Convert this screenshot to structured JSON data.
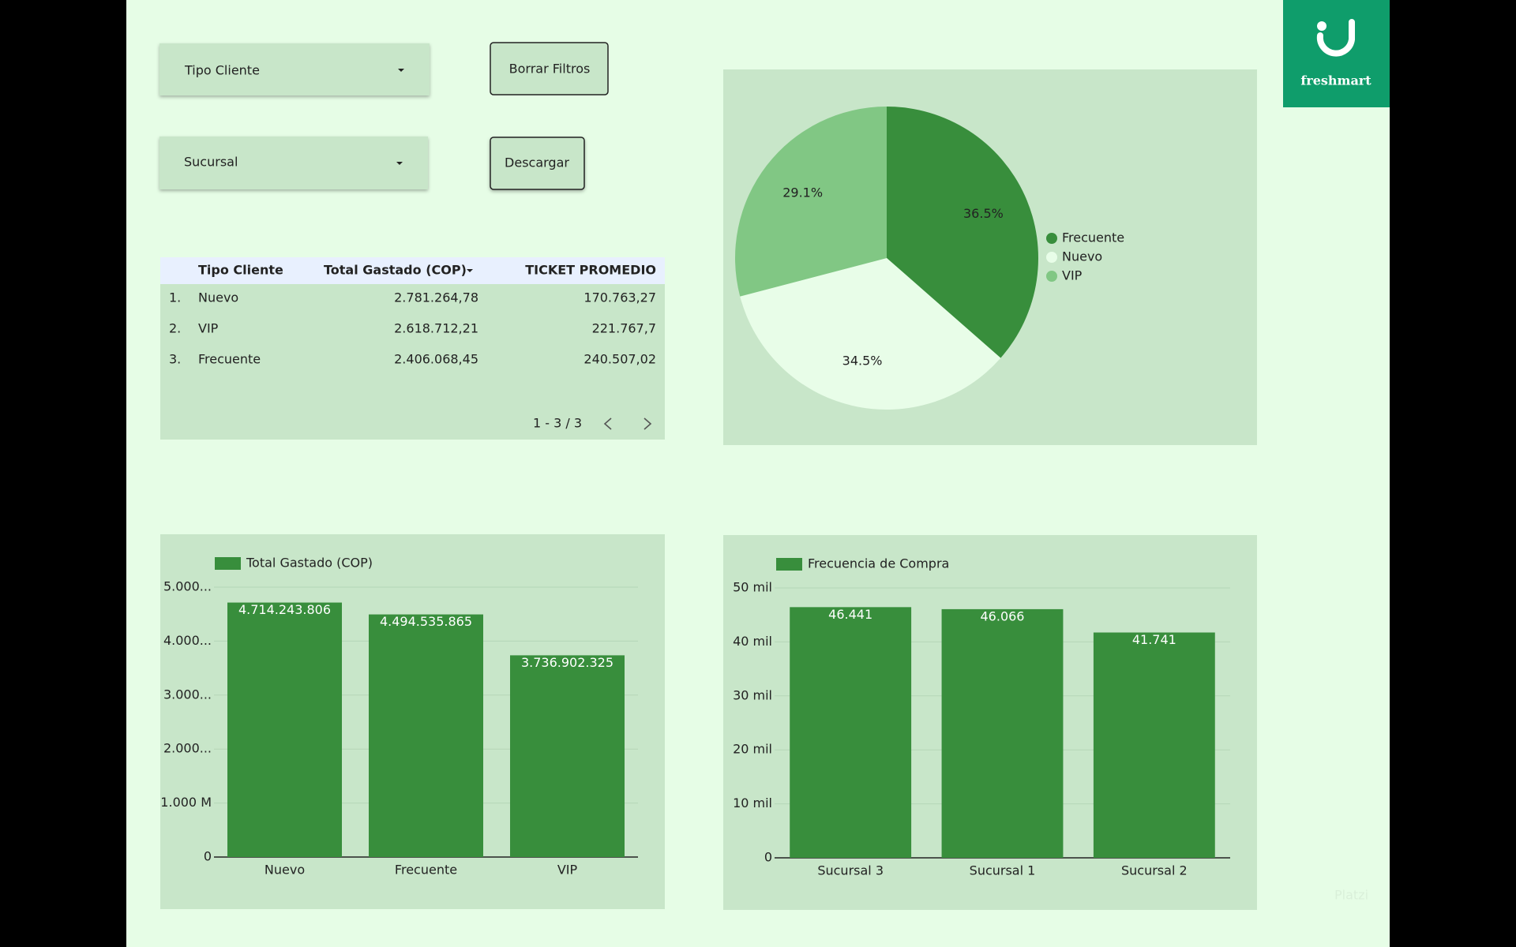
{
  "filters": [
    "Tipo Cliente",
    "Sucursal"
  ],
  "buttons": [
    "Borrar Filtros",
    "Descargar"
  ],
  "logo": "freshmart",
  "watermark": "Platzi",
  "table": {
    "headers": [
      "Tipo Cliente",
      "Total Gastado (COP)",
      "TICKET PROMEDIO"
    ],
    "rows": [
      [
        "1.",
        "Nuevo",
        "2.781.264,78",
        "170.763,27"
      ],
      [
        "2.",
        "VIP",
        "2.618.712,21",
        "221.767,7"
      ],
      [
        "3.",
        "Frecuente",
        "2.406.068,45",
        "240.507,02"
      ]
    ],
    "pagination": "1 - 3 / 3"
  },
  "chart_data": [
    {
      "type": "pie",
      "categories": [
        "Frecuente",
        "Nuevo",
        "VIP"
      ],
      "values": [
        36.5,
        34.5,
        29.1
      ],
      "value_labels": [
        "36.5%",
        "34.5%",
        "29.1%"
      ],
      "colors": [
        "#388e3c",
        "#e8fde8",
        "#81c784"
      ],
      "legend": "right"
    },
    {
      "type": "bar",
      "categories": [
        "Nuevo",
        "Frecuente",
        "VIP"
      ],
      "series": [
        {
          "name": "Total Gastado (COP)",
          "color": "#388e3c",
          "values": [
            4714243806,
            4494535865,
            3736902325
          ],
          "value_labels": [
            "4.714.243.806",
            "4.494.535.865",
            "3.736.902.325"
          ]
        }
      ],
      "ylim": [
        0,
        5000000000
      ],
      "yticks": [
        0,
        {
          "value": 1000000000,
          "label": "1.000 M"
        },
        {
          "value": 2000000000,
          "label": "2.000..."
        },
        {
          "value": 3000000000,
          "label": "3.000..."
        },
        {
          "value": 4000000000,
          "label": "4.000..."
        },
        {
          "value": 5000000000,
          "label": "5.000..."
        }
      ],
      "grid": true,
      "legend": "top-left"
    },
    {
      "type": "bar",
      "categories": [
        "Sucursal 3",
        "Sucursal 1",
        "Sucursal 2"
      ],
      "series": [
        {
          "name": "Frecuencia de Compra",
          "color": "#388e3c",
          "values": [
            46441,
            46066,
            41741
          ],
          "value_labels": [
            "46.441",
            "46.066",
            "41.741"
          ]
        }
      ],
      "ylim": [
        0,
        50000
      ],
      "yticks": [
        0,
        {
          "value": 10000,
          "label": "10 mil"
        },
        {
          "value": 20000,
          "label": "20 mil"
        },
        {
          "value": 30000,
          "label": "30 mil"
        },
        {
          "value": 40000,
          "label": "40 mil"
        },
        {
          "value": 50000,
          "label": "50 mil"
        }
      ],
      "grid": true,
      "legend": "top-left"
    }
  ]
}
